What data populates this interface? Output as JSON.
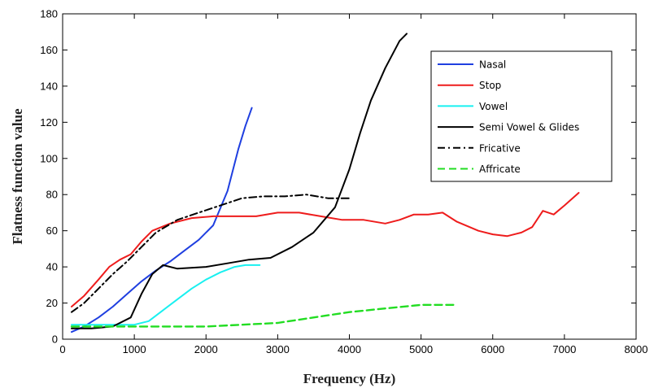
{
  "chart_data": {
    "type": "line",
    "title": "",
    "xlabel": "Frequency (Hz)",
    "ylabel": "Flatness function value",
    "xlim": [
      0,
      8000
    ],
    "ylim": [
      0,
      180
    ],
    "xticks": [
      0,
      1000,
      2000,
      3000,
      4000,
      5000,
      6000,
      7000,
      8000
    ],
    "yticks": [
      0,
      20,
      40,
      60,
      80,
      100,
      120,
      140,
      160,
      180
    ],
    "grid": false,
    "legend_position": "top-right",
    "series": [
      {
        "name": "Nasal",
        "color": "#1f3fe0",
        "style": "solid",
        "x": [
          125,
          300,
          500,
          700,
          900,
          1100,
          1300,
          1500,
          1700,
          1900,
          2100,
          2300,
          2450,
          2550,
          2640
        ],
        "y": [
          4,
          7,
          12,
          18,
          25,
          32,
          38,
          43,
          49,
          55,
          63,
          82,
          105,
          118,
          128
        ]
      },
      {
        "name": "Stop",
        "color": "#ee1c1c",
        "style": "solid",
        "x": [
          125,
          300,
          500,
          650,
          800,
          950,
          1100,
          1250,
          1500,
          1800,
          2100,
          2400,
          2700,
          3000,
          3300,
          3600,
          3900,
          4200,
          4500,
          4700,
          4900,
          5100,
          5300,
          5500,
          5800,
          6000,
          6200,
          6400,
          6550,
          6700,
          6850,
          7000,
          7200
        ],
        "y": [
          18,
          24,
          33,
          40,
          44,
          47,
          54,
          60,
          64,
          67,
          68,
          68,
          68,
          70,
          70,
          68,
          66,
          66,
          64,
          66,
          69,
          69,
          70,
          65,
          60,
          58,
          57,
          59,
          62,
          71,
          69,
          74,
          81
        ]
      },
      {
        "name": "Vowel",
        "color": "#19f0f0",
        "style": "solid",
        "x": [
          125,
          400,
          700,
          1000,
          1200,
          1400,
          1600,
          1800,
          2000,
          2200,
          2400,
          2550,
          2750
        ],
        "y": [
          8,
          8,
          8,
          8,
          10,
          16,
          22,
          28,
          33,
          37,
          40,
          41,
          41
        ]
      },
      {
        "name": "Semi Vowel & Glides",
        "color": "#000000",
        "style": "solid",
        "x": [
          125,
          400,
          700,
          950,
          1100,
          1250,
          1400,
          1600,
          2000,
          2300,
          2600,
          2900,
          3200,
          3500,
          3800,
          4000,
          4150,
          4300,
          4500,
          4700,
          4800
        ],
        "y": [
          6,
          6,
          7,
          12,
          25,
          36,
          41,
          39,
          40,
          42,
          44,
          45,
          51,
          59,
          73,
          94,
          114,
          132,
          150,
          165,
          169
        ]
      },
      {
        "name": "Fricative",
        "color": "#000000",
        "style": "dashdot",
        "x": [
          125,
          300,
          500,
          700,
          900,
          1100,
          1300,
          1600,
          1900,
          2200,
          2500,
          2800,
          3100,
          3400,
          3700,
          4000
        ],
        "y": [
          15,
          20,
          28,
          36,
          43,
          51,
          59,
          66,
          70,
          74,
          78,
          79,
          79,
          80,
          78,
          78
        ]
      },
      {
        "name": "Affricate",
        "color": "#22dd22",
        "style": "dashed",
        "x": [
          125,
          500,
          1000,
          1500,
          2000,
          2500,
          3000,
          3500,
          4000,
          4500,
          5000,
          5450
        ],
        "y": [
          7,
          7,
          7,
          7,
          7,
          8,
          9,
          12,
          15,
          17,
          19,
          19
        ]
      }
    ]
  }
}
